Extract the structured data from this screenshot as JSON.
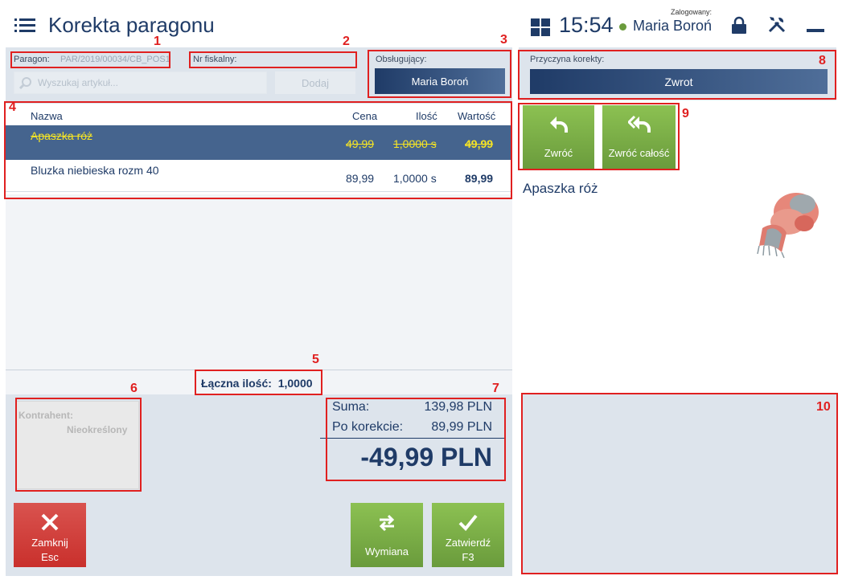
{
  "header": {
    "title": "Korekta paragonu",
    "time": "15:54",
    "logged_label": "Zalogowany:",
    "user_name": "Maria Boroń",
    "icons": [
      "menu-icon",
      "grid-icon",
      "lock-icon",
      "tools-icon",
      "minimize-icon"
    ]
  },
  "receipt": {
    "receipt_label": "Paragon:",
    "receipt_value": "PAR/2019/00034/CB_POS1",
    "fiscal_label": "Nr fiskalny:",
    "fiscal_value": "",
    "search_placeholder": "Wyszukaj artykuł...",
    "add_label": "Dodaj",
    "cashier_label": "Obsługujący:",
    "cashier_name": "Maria Boroń"
  },
  "table": {
    "columns": {
      "name": "Nazwa",
      "price": "Cena",
      "qty": "Ilość",
      "value": "Wartość"
    },
    "rows": [
      {
        "name": "Apaszka róż",
        "price": "49,99",
        "qty": "1,0000 s",
        "value": "49,99"
      },
      {
        "name": "Bluzka niebieska rozm 40",
        "price": "89,99",
        "qty": "1,0000 s",
        "value": "89,99"
      }
    ]
  },
  "totals": {
    "total_qty_label": "Łączna ilość:",
    "total_qty_value": "1,0000",
    "sum_label": "Suma:",
    "sum_value": "139,98 PLN",
    "after_label": "Po korekcie:",
    "after_value": "89,99 PLN",
    "difference": "-49,99 PLN"
  },
  "contractor": {
    "label": "Kontrahent:",
    "value": "Nieokreślony"
  },
  "buttons": {
    "close_label": "Zamknij",
    "close_key": "Esc",
    "exchange_label": "Wymiana",
    "confirm_label": "Zatwierdź",
    "confirm_key": "F3",
    "return_label": "Zwróć",
    "return_all_label": "Zwróć całość"
  },
  "correction": {
    "reason_label": "Przyczyna korekty:",
    "reason_value": "Zwrot"
  },
  "selected_item": {
    "name": "Apaszka róż"
  },
  "annotations": [
    "1",
    "2",
    "3",
    "4",
    "5",
    "6",
    "7",
    "8",
    "9",
    "10"
  ],
  "colors": {
    "navy": "#1f3b67",
    "selected_row": "#45648e",
    "strike_yellow": "#f5e425",
    "green": "#6a9b3c",
    "red": "#c9302c",
    "annotation": "#e02020"
  }
}
